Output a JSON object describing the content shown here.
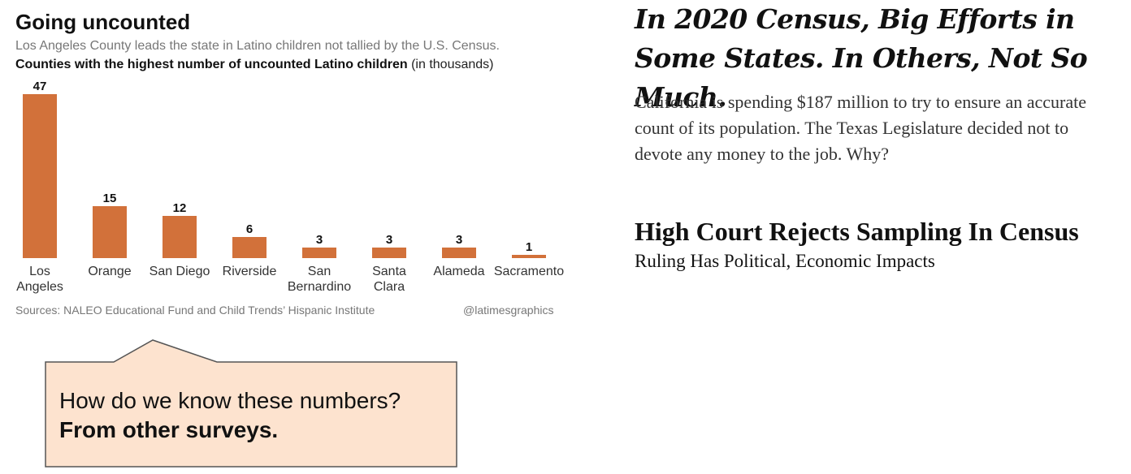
{
  "chart": {
    "title": "Going uncounted",
    "subtitle": "Los Angeles County leads the state in Latino children not tallied by the U.S. Census.",
    "label_bold": "Counties with the highest number of uncounted Latino children",
    "label_rest": " (in thousands)",
    "source": "Sources: NALEO Educational Fund and Child Trends’ Hispanic Institute",
    "credit": "@latimesgraphics"
  },
  "chart_data": {
    "type": "bar",
    "categories": [
      [
        "Los",
        "Angeles"
      ],
      [
        "Orange"
      ],
      [
        "San Diego"
      ],
      [
        "Riverside"
      ],
      [
        "San",
        "Bernardino"
      ],
      [
        "Santa",
        "Clara"
      ],
      [
        "Alameda"
      ],
      [
        "Sacramento"
      ]
    ],
    "values": [
      47,
      15,
      12,
      6,
      3,
      3,
      3,
      1
    ],
    "title": "Going uncounted",
    "subtitle": "Los Angeles County leads the state in Latino children not tallied by the U.S. Census.",
    "ylabel": "",
    "xlabel": "",
    "ylim": [
      0,
      47
    ],
    "grid": false,
    "data_labels": true,
    "bar_color": "#d2713a"
  },
  "callout": {
    "question": "How do we know these numbers?",
    "answer": "From other surveys."
  },
  "articles": [
    {
      "headline": "In 2020 Census, Big Efforts in Some States. In Others, Not So Much.",
      "summary": "California is spending $187 million to try to ensure an accurate count of its population. The Texas Legislature decided not to devote any money to the job. Why?"
    },
    {
      "headline": "High Court Rejects Sampling In Census",
      "subhead": "Ruling Has Political, Economic Impacts"
    }
  ]
}
